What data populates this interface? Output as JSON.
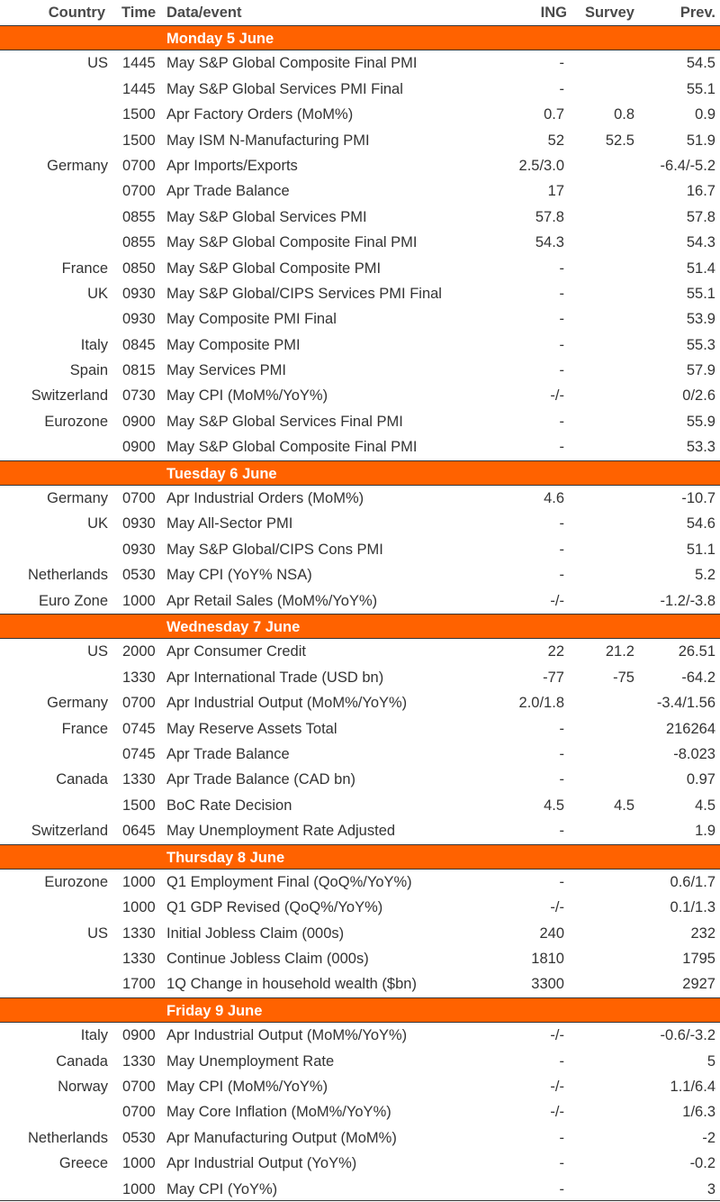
{
  "header": {
    "country": "Country",
    "time": "Time",
    "event": "Data/event",
    "ing": "ING",
    "survey": "Survey",
    "prev": "Prev."
  },
  "days": [
    {
      "label": "Monday 5 June",
      "rows": [
        {
          "country": "US",
          "time": "1445",
          "event": "May S&P Global Composite Final PMI",
          "ing": "-",
          "survey": "",
          "prev": "54.5"
        },
        {
          "country": "",
          "time": "1445",
          "event": "May S&P Global Services PMI Final",
          "ing": "-",
          "survey": "",
          "prev": "55.1"
        },
        {
          "country": "",
          "time": "1500",
          "event": "Apr Factory Orders (MoM%)",
          "ing": "0.7",
          "survey": "0.8",
          "prev": "0.9"
        },
        {
          "country": "",
          "time": "1500",
          "event": "May ISM N-Manufacturing PMI",
          "ing": "52",
          "survey": "52.5",
          "prev": "51.9"
        },
        {
          "country": "Germany",
          "time": "0700",
          "event": "Apr Imports/Exports",
          "ing": "2.5/3.0",
          "survey": "",
          "prev": "-6.4/-5.2"
        },
        {
          "country": "",
          "time": "0700",
          "event": "Apr Trade Balance",
          "ing": "17",
          "survey": "",
          "prev": "16.7"
        },
        {
          "country": "",
          "time": "0855",
          "event": "May S&P Global Services PMI",
          "ing": "57.8",
          "survey": "",
          "prev": "57.8"
        },
        {
          "country": "",
          "time": "0855",
          "event": "May S&P Global Composite Final PMI",
          "ing": "54.3",
          "survey": "",
          "prev": "54.3"
        },
        {
          "country": "France",
          "time": "0850",
          "event": "May S&P Global Composite PMI",
          "ing": "-",
          "survey": "",
          "prev": "51.4"
        },
        {
          "country": "UK",
          "time": "0930",
          "event": "May S&P Global/CIPS Services PMI Final",
          "ing": "-",
          "survey": "",
          "prev": "55.1"
        },
        {
          "country": "",
          "time": "0930",
          "event": "May Composite PMI Final",
          "ing": "-",
          "survey": "",
          "prev": "53.9"
        },
        {
          "country": "Italy",
          "time": "0845",
          "event": "May Composite PMI",
          "ing": "-",
          "survey": "",
          "prev": "55.3"
        },
        {
          "country": "Spain",
          "time": "0815",
          "event": "May Services PMI",
          "ing": "-",
          "survey": "",
          "prev": "57.9"
        },
        {
          "country": "Switzerland",
          "time": "0730",
          "event": "May CPI (MoM%/YoY%)",
          "ing": "-/-",
          "survey": "",
          "prev": "0/2.6"
        },
        {
          "country": "Eurozone",
          "time": "0900",
          "event": "May S&P Global Services Final PMI",
          "ing": "-",
          "survey": "",
          "prev": "55.9"
        },
        {
          "country": "",
          "time": "0900",
          "event": "May S&P Global Composite Final PMI",
          "ing": "-",
          "survey": "",
          "prev": "53.3"
        }
      ]
    },
    {
      "label": "Tuesday 6 June",
      "rows": [
        {
          "country": "Germany",
          "time": "0700",
          "event": "Apr Industrial Orders (MoM%)",
          "ing": "4.6",
          "survey": "",
          "prev": "-10.7"
        },
        {
          "country": "UK",
          "time": "0930",
          "event": "May All-Sector PMI",
          "ing": "-",
          "survey": "",
          "prev": "54.6"
        },
        {
          "country": "",
          "time": "0930",
          "event": "May S&P Global/CIPS Cons PMI",
          "ing": "-",
          "survey": "",
          "prev": "51.1"
        },
        {
          "country": "Netherlands",
          "time": "0530",
          "event": "May CPI (YoY% NSA)",
          "ing": "-",
          "survey": "",
          "prev": "5.2"
        },
        {
          "country": "Euro Zone",
          "time": "1000",
          "event": "Apr Retail Sales (MoM%/YoY%)",
          "ing": "-/-",
          "survey": "",
          "prev": "-1.2/-3.8"
        }
      ]
    },
    {
      "label": "Wednesday 7 June",
      "rows": [
        {
          "country": "US",
          "time": "2000",
          "event": "Apr Consumer Credit",
          "ing": "22",
          "survey": "21.2",
          "prev": "26.51"
        },
        {
          "country": "",
          "time": "1330",
          "event": "Apr International Trade (USD bn)",
          "ing": "-77",
          "survey": "-75",
          "prev": "-64.2"
        },
        {
          "country": "Germany",
          "time": "0700",
          "event": "Apr Industrial Output (MoM%/YoY%)",
          "ing": "2.0/1.8",
          "survey": "",
          "prev": "-3.4/1.56"
        },
        {
          "country": "France",
          "time": "0745",
          "event": "May Reserve Assets Total",
          "ing": "-",
          "survey": "",
          "prev": "216264"
        },
        {
          "country": "",
          "time": "0745",
          "event": "Apr Trade Balance",
          "ing": "-",
          "survey": "",
          "prev": "-8.023"
        },
        {
          "country": "Canada",
          "time": "1330",
          "event": "Apr Trade Balance (CAD bn)",
          "ing": "-",
          "survey": "",
          "prev": "0.97"
        },
        {
          "country": "",
          "time": "1500",
          "event": "BoC Rate Decision",
          "ing": "4.5",
          "survey": "4.5",
          "prev": "4.5"
        },
        {
          "country": "Switzerland",
          "time": "0645",
          "event": "May Unemployment Rate Adjusted",
          "ing": "-",
          "survey": "",
          "prev": "1.9"
        }
      ]
    },
    {
      "label": "Thursday 8 June",
      "rows": [
        {
          "country": "Eurozone",
          "time": "1000",
          "event": "Q1 Employment Final (QoQ%/YoY%)",
          "ing": "-",
          "survey": "",
          "prev": "0.6/1.7"
        },
        {
          "country": "",
          "time": "1000",
          "event": "Q1 GDP Revised (QoQ%/YoY%)",
          "ing": "-/-",
          "survey": "",
          "prev": "0.1/1.3"
        },
        {
          "country": "US",
          "time": "1330",
          "event": "Initial Jobless Claim (000s)",
          "ing": "240",
          "survey": "",
          "prev": "232"
        },
        {
          "country": "",
          "time": "1330",
          "event": "Continue Jobless Claim (000s)",
          "ing": "1810",
          "survey": "",
          "prev": "1795"
        },
        {
          "country": "",
          "time": "1700",
          "event": "1Q Change in household wealth ($bn)",
          "ing": "3300",
          "survey": "",
          "prev": "2927"
        }
      ]
    },
    {
      "label": "Friday 9 June",
      "rows": [
        {
          "country": "Italy",
          "time": "0900",
          "event": "Apr Industrial Output (MoM%/YoY%)",
          "ing": "-/-",
          "survey": "",
          "prev": "-0.6/-3.2"
        },
        {
          "country": "Canada",
          "time": "1330",
          "event": "May Unemployment Rate",
          "ing": "-",
          "survey": "",
          "prev": "5"
        },
        {
          "country": "Norway",
          "time": "0700",
          "event": "May CPI (MoM%/YoY%)",
          "ing": "-/-",
          "survey": "",
          "prev": "1.1/6.4"
        },
        {
          "country": "",
          "time": "0700",
          "event": "May Core Inflation (MoM%/YoY%)",
          "ing": "-/-",
          "survey": "",
          "prev": "1/6.3"
        },
        {
          "country": "Netherlands",
          "time": "0530",
          "event": "Apr Manufacturing Output (MoM%)",
          "ing": "-",
          "survey": "",
          "prev": "-2"
        },
        {
          "country": "Greece",
          "time": "1000",
          "event": "Apr Industrial Output (YoY%)",
          "ing": "-",
          "survey": "",
          "prev": "-0.2"
        },
        {
          "country": "",
          "time": "1000",
          "event": "May CPI (YoY%)",
          "ing": "-",
          "survey": "",
          "prev": "3"
        }
      ]
    }
  ]
}
